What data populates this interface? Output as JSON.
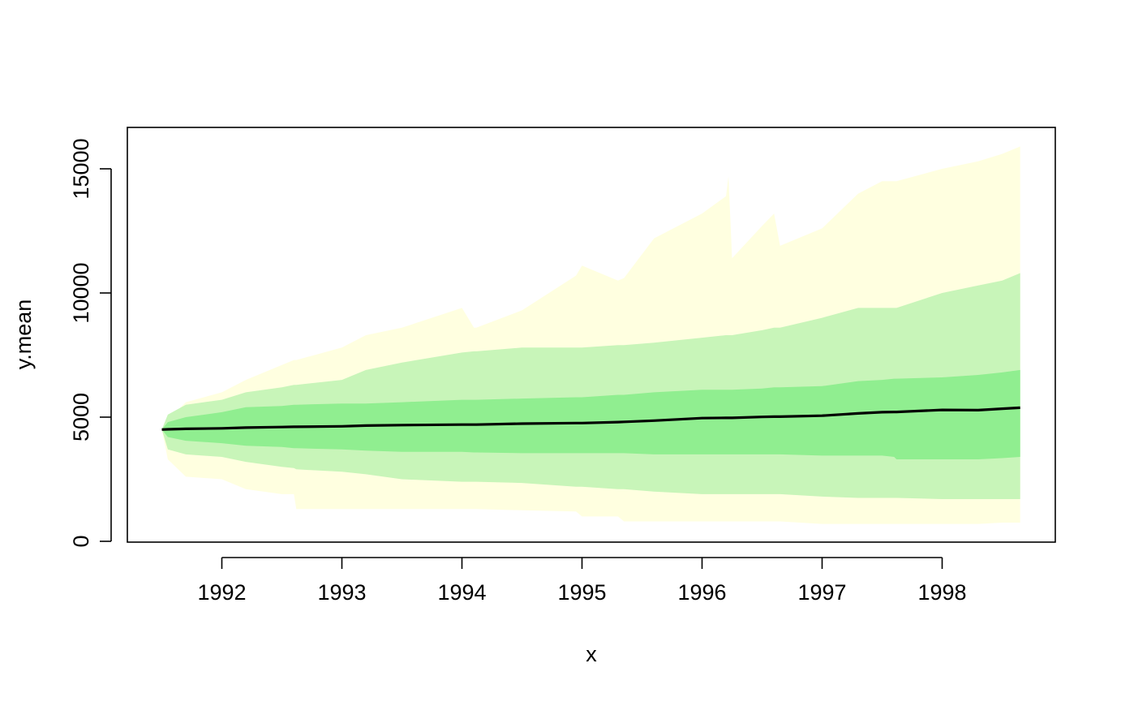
{
  "chart_data": {
    "type": "area",
    "title": "",
    "xlabel": "x",
    "ylabel": "y.mean",
    "xlim": [
      1991.2,
      1998.9
    ],
    "ylim": [
      0,
      16200
    ],
    "x_ticks": [
      1992,
      1993,
      1994,
      1995,
      1996,
      1997,
      1998
    ],
    "y_ticks": [
      0,
      5000,
      10000,
      15000
    ],
    "x_tick_labels": [
      "1992",
      "1993",
      "1994",
      "1995",
      "1996",
      "1997",
      "1998"
    ],
    "y_tick_labels": [
      "0",
      "5000",
      "10000",
      "15000"
    ],
    "grid": false,
    "legend": "none",
    "x": [
      1991.5,
      1991.55,
      1991.7,
      1992.0,
      1992.2,
      1992.5,
      1992.6,
      1992.62,
      1993.0,
      1993.2,
      1993.5,
      1994.0,
      1994.1,
      1994.12,
      1994.5,
      1994.95,
      1995.0,
      1995.3,
      1995.35,
      1995.6,
      1996.0,
      1996.2,
      1996.22,
      1996.25,
      1996.5,
      1996.6,
      1996.65,
      1997.0,
      1997.3,
      1997.5,
      1997.6,
      1997.62,
      1998.0,
      1998.3,
      1998.5,
      1998.65
    ],
    "series": [
      {
        "name": "",
        "role": "band",
        "color": "#ffffe0",
        "lower": [
          4500,
          3300,
          2600,
          2500,
          2100,
          1900,
          1900,
          1300,
          1300,
          1300,
          1300,
          1300,
          1300,
          1300,
          1250,
          1200,
          1000,
          1000,
          800,
          800,
          800,
          800,
          800,
          800,
          800,
          800,
          800,
          700,
          700,
          700,
          700,
          700,
          700,
          700,
          750,
          750
        ],
        "upper": [
          4500,
          4900,
          5600,
          6000,
          6500,
          7100,
          7300,
          7300,
          7800,
          8300,
          8600,
          9400,
          8600,
          8600,
          9300,
          10700,
          11100,
          10500,
          10600,
          12200,
          13200,
          13900,
          14700,
          11400,
          12700,
          13200,
          11900,
          12600,
          14000,
          14500,
          14500,
          14500,
          15000,
          15300,
          15600,
          15900
        ]
      },
      {
        "name": "",
        "role": "band",
        "color": "#c8f5b9",
        "lower": [
          4500,
          3700,
          3500,
          3400,
          3200,
          3000,
          2950,
          2900,
          2800,
          2700,
          2500,
          2400,
          2400,
          2400,
          2350,
          2200,
          2200,
          2100,
          2100,
          2000,
          1900,
          1900,
          1900,
          1900,
          1900,
          1900,
          1900,
          1800,
          1750,
          1750,
          1750,
          1750,
          1700,
          1700,
          1700,
          1700
        ],
        "upper": [
          4500,
          5100,
          5500,
          5700,
          6000,
          6200,
          6300,
          6300,
          6500,
          6900,
          7200,
          7600,
          7650,
          7650,
          7800,
          7800,
          7800,
          7900,
          7900,
          8000,
          8200,
          8300,
          8300,
          8300,
          8500,
          8600,
          8600,
          9000,
          9400,
          9400,
          9400,
          9400,
          10000,
          10300,
          10500,
          10800
        ]
      },
      {
        "name": "",
        "role": "band",
        "color": "#90ee90",
        "lower": [
          4500,
          4200,
          4050,
          3950,
          3850,
          3800,
          3750,
          3750,
          3700,
          3650,
          3600,
          3600,
          3580,
          3580,
          3550,
          3550,
          3550,
          3550,
          3550,
          3500,
          3500,
          3500,
          3500,
          3500,
          3500,
          3500,
          3500,
          3450,
          3450,
          3450,
          3400,
          3300,
          3300,
          3300,
          3350,
          3400
        ],
        "upper": [
          4500,
          4800,
          5000,
          5200,
          5400,
          5450,
          5500,
          5500,
          5550,
          5550,
          5600,
          5700,
          5700,
          5700,
          5750,
          5800,
          5800,
          5900,
          5900,
          6000,
          6100,
          6100,
          6100,
          6100,
          6150,
          6200,
          6200,
          6250,
          6450,
          6500,
          6550,
          6550,
          6600,
          6700,
          6800,
          6900
        ]
      },
      {
        "name": "",
        "role": "line",
        "color": "#000000",
        "values": [
          4500,
          4510,
          4530,
          4550,
          4580,
          4600,
          4610,
          4610,
          4630,
          4660,
          4680,
          4700,
          4700,
          4700,
          4740,
          4760,
          4760,
          4800,
          4810,
          4860,
          4960,
          4970,
          4970,
          4970,
          5010,
          5020,
          5020,
          5060,
          5150,
          5200,
          5210,
          5210,
          5290,
          5280,
          5340,
          5380
        ]
      }
    ]
  }
}
